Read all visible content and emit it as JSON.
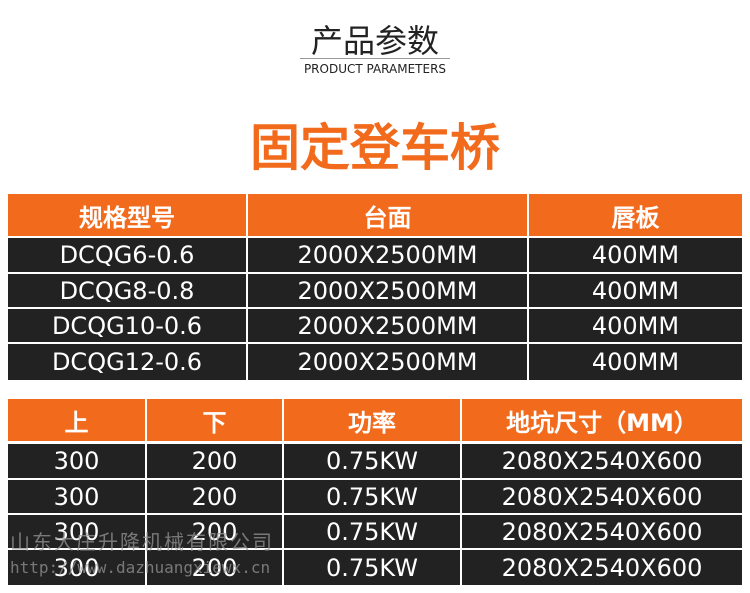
{
  "header": {
    "title": "产品参数",
    "subtitle": "PRODUCT PARAMETERS",
    "product": "固定登车桥"
  },
  "table1": {
    "columns": [
      "规格型号",
      "台面",
      "唇板"
    ],
    "rows": [
      [
        "DCQG6-0.6",
        "2000X2500MM",
        "400MM"
      ],
      [
        "DCQG8-0.8",
        "2000X2500MM",
        "400MM"
      ],
      [
        "DCQG10-0.6",
        "2000X2500MM",
        "400MM"
      ],
      [
        "DCQG12-0.6",
        "2000X2500MM",
        "400MM"
      ]
    ]
  },
  "table2": {
    "columns": [
      "上",
      "下",
      "功率",
      "地坑尺寸（MM）"
    ],
    "rows": [
      [
        "300",
        "200",
        "0.75KW",
        "2080X2540X600"
      ],
      [
        "300",
        "200",
        "0.75KW",
        "2080X2540X600"
      ],
      [
        "300",
        "200",
        "0.75KW",
        "2080X2540X600"
      ],
      [
        "300",
        "200",
        "0.75KW",
        "2080X2540X600"
      ]
    ]
  },
  "watermark": {
    "company": "山东大庄升降机械有限公司",
    "url": "http://www.dazhuangxiewx.cn"
  }
}
